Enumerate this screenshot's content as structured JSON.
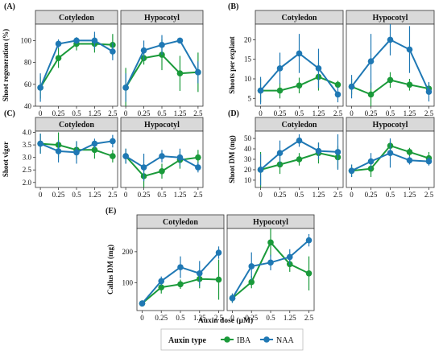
{
  "chart_data": [
    {
      "type": "line",
      "panel_label": "(A)",
      "ylabel": "Shoot regeneration (%)",
      "ylim": [
        40,
        115
      ],
      "yticks": [
        40,
        60,
        80,
        100
      ],
      "facets": [
        {
          "strip": "Cotyledon",
          "series": [
            {
              "group": "IBA",
              "values": [
                57,
                84,
                97,
                97,
                96
              ],
              "errors": [
                10,
                9,
                6,
                8,
                10
              ]
            },
            {
              "group": "NAA",
              "values": [
                57,
                97,
                100,
                100,
                90
              ],
              "errors": [
                13,
                4,
                3,
                8,
                8
              ]
            }
          ]
        },
        {
          "strip": "Hypocotyl",
          "series": [
            {
              "group": "IBA",
              "values": [
                57,
                84,
                87,
                70,
                71
              ],
              "errors": [
                18,
                6,
                14,
                16,
                18
              ]
            },
            {
              "group": "NAA",
              "values": [
                57,
                91,
                96,
                100,
                71
              ],
              "errors": [
                13,
                9,
                9,
                2,
                10
              ]
            }
          ]
        }
      ]
    },
    {
      "type": "line",
      "panel_label": "(B)",
      "ylabel": "Shoots per explant",
      "ylim": [
        3,
        24
      ],
      "yticks": [
        5,
        10,
        15,
        20
      ],
      "facets": [
        {
          "strip": "Cotyledon",
          "series": [
            {
              "group": "IBA",
              "values": [
                7,
                7,
                8.3,
                10.5,
                8.5
              ],
              "errors": [
                3,
                2,
                2,
                3.5,
                1
              ]
            },
            {
              "group": "NAA",
              "values": [
                7,
                12.7,
                16.5,
                12.7,
                6
              ],
              "errors": [
                3.5,
                4,
                5,
                5,
                2
              ]
            }
          ]
        },
        {
          "strip": "Hypocotyl",
          "series": [
            {
              "group": "IBA",
              "values": [
                8,
                6,
                9.7,
                8.5,
                7.5
              ],
              "errors": [
                2,
                3,
                2,
                1.5,
                1.5
              ]
            },
            {
              "group": "NAA",
              "values": [
                8,
                14.5,
                20,
                17.5,
                6.7
              ],
              "errors": [
                3,
                7,
                4,
                6,
                2.5
              ]
            }
          ]
        }
      ]
    },
    {
      "type": "line",
      "panel_label": "(C)",
      "ylabel": "Shoot vigor",
      "ylim": [
        1.8,
        4.05
      ],
      "yticks": [
        2.0,
        2.5,
        3.0,
        3.5,
        4.0
      ],
      "facets": [
        {
          "strip": "Cotyledon",
          "series": [
            {
              "group": "IBA",
              "values": [
                3.55,
                3.5,
                3.3,
                3.3,
                3.05
              ],
              "errors": [
                0.4,
                0.5,
                0.35,
                0.35,
                0.25
              ]
            },
            {
              "group": "NAA",
              "values": [
                3.55,
                3.25,
                3.2,
                3.55,
                3.65
              ],
              "errors": [
                0.4,
                0.45,
                0.45,
                0.2,
                0.25
              ]
            }
          ]
        },
        {
          "strip": "Hypocotyl",
          "series": [
            {
              "group": "IBA",
              "values": [
                3.05,
                2.25,
                2.45,
                2.9,
                3.0
              ],
              "errors": [
                0.3,
                0.45,
                0.3,
                0.35,
                0.3
              ]
            },
            {
              "group": "NAA",
              "values": [
                3.05,
                2.6,
                3.05,
                3.0,
                2.6
              ],
              "errors": [
                0.3,
                0.55,
                0.25,
                0.35,
                0.2
              ]
            }
          ]
        }
      ]
    },
    {
      "type": "line",
      "panel_label": "(D)",
      "ylabel": "Shoot DM (mg)",
      "ylim": [
        3,
        57
      ],
      "yticks": [
        10,
        20,
        30,
        40,
        50
      ],
      "facets": [
        {
          "strip": "Cotyledon",
          "series": [
            {
              "group": "IBA",
              "values": [
                20,
                25,
                30,
                36,
                32
              ],
              "errors": [
                17,
                9,
                6,
                10,
                11
              ]
            },
            {
              "group": "NAA",
              "values": [
                20,
                36,
                48,
                38,
                37
              ],
              "errors": [
                15,
                12,
                6,
                8,
                17
              ]
            }
          ]
        },
        {
          "strip": "Hypocotyl",
          "series": [
            {
              "group": "IBA",
              "values": [
                19,
                21,
                43,
                37,
                31
              ],
              "errors": [
                6,
                8,
                5,
                4,
                6
              ]
            },
            {
              "group": "NAA",
              "values": [
                19,
                28,
                36,
                29,
                28
              ],
              "errors": [
                6,
                8,
                14,
                4,
                4
              ]
            }
          ]
        }
      ]
    },
    {
      "type": "line",
      "panel_label": "(E)",
      "ylabel": "Callus DM (mg)",
      "ylim": [
        10,
        275
      ],
      "yticks": [
        100,
        200
      ],
      "facets": [
        {
          "strip": "Cotyledon",
          "series": [
            {
              "group": "IBA",
              "values": [
                33,
                85,
                95,
                112,
                110
              ],
              "errors": [
                10,
                20,
                15,
                30,
                65
              ]
            },
            {
              "group": "NAA",
              "values": [
                33,
                105,
                150,
                130,
                197
              ],
              "errors": [
                10,
                15,
                35,
                40,
                20
              ]
            }
          ]
        },
        {
          "strip": "Hypocotyl",
          "series": [
            {
              "group": "IBA",
              "values": [
                50,
                102,
                230,
                160,
                130
              ],
              "errors": [
                15,
                20,
                45,
                25,
                55
              ]
            },
            {
              "group": "NAA",
              "values": [
                50,
                153,
                165,
                183,
                237
              ],
              "errors": [
                15,
                45,
                25,
                25,
                20
              ]
            }
          ]
        }
      ]
    }
  ],
  "x_ticks": [
    "0",
    "0.25",
    "0.5",
    "1.25",
    "2.5"
  ],
  "xlabel": "Auxin dose (µM)",
  "legend": {
    "title": "Auxin type",
    "position": "bottom",
    "items": [
      {
        "group": "IBA",
        "label": "IBA",
        "color": "#1a9a3a"
      },
      {
        "group": "NAA",
        "label": "NAA",
        "color": "#1f78b4"
      }
    ]
  },
  "colors": {
    "strip_bg": "#d9d9d9",
    "border": "#333333",
    "text": "#111111"
  }
}
